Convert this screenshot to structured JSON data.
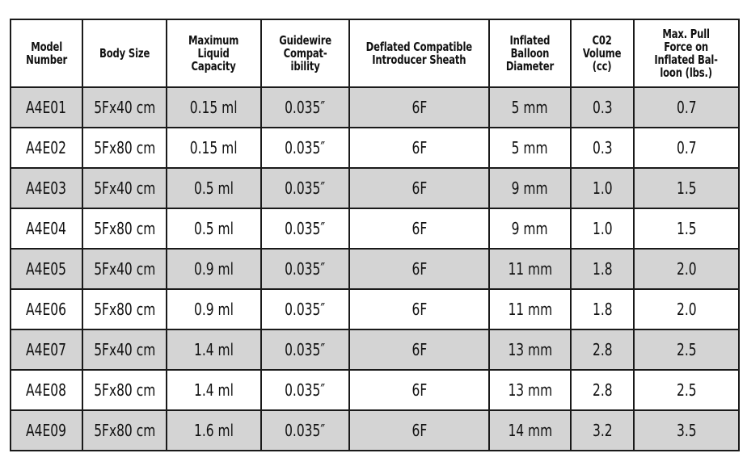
{
  "table": {
    "headers": [
      "Model\nNumber",
      "Body Size",
      "Maximum\nLiquid\nCapacity",
      "Guidewire\nCompat-\nibility",
      "Deflated Compatible\nIntroducer Sheath",
      "Inflated\nBalloon\nDiameter",
      "C02\nVolume\n(cc)",
      "Max. Pull\nForce on\nInflated Bal-\nloon (lbs.)"
    ],
    "rows": [
      [
        "A4E01",
        "5Fx40 cm",
        "0.15 ml",
        "0.035″",
        "6F",
        "5 mm",
        "0.3",
        "0.7"
      ],
      [
        "A4E02",
        "5Fx80 cm",
        "0.15 ml",
        "0.035″",
        "6F",
        "5 mm",
        "0.3",
        "0.7"
      ],
      [
        "A4E03",
        "5Fx40 cm",
        "0.5 ml",
        "0.035″",
        "6F",
        "9 mm",
        "1.0",
        "1.5"
      ],
      [
        "A4E04",
        "5Fx80 cm",
        "0.5 ml",
        "0.035″",
        "6F",
        "9 mm",
        "1.0",
        "1.5"
      ],
      [
        "A4E05",
        "5Fx40 cm",
        "0.9 ml",
        "0.035″",
        "6F",
        "11 mm",
        "1.8",
        "2.0"
      ],
      [
        "A4E06",
        "5Fx80 cm",
        "0.9 ml",
        "0.035″",
        "6F",
        "11 mm",
        "1.8",
        "2.0"
      ],
      [
        "A4E07",
        "5Fx40 cm",
        "1.4 ml",
        "0.035″",
        "6F",
        "13 mm",
        "2.8",
        "2.5"
      ],
      [
        "A4E08",
        "5Fx80 cm",
        "1.4 ml",
        "0.035″",
        "6F",
        "13 mm",
        "2.8",
        "2.5"
      ],
      [
        "A4E09",
        "5Fx80 cm",
        "1.6 ml",
        "0.035″",
        "6F",
        "14 mm",
        "3.2",
        "3.5"
      ]
    ],
    "colors": {
      "shaded_row": "#d4d4d4",
      "plain_row": "#ffffff",
      "border": "#1a1a1a"
    }
  }
}
